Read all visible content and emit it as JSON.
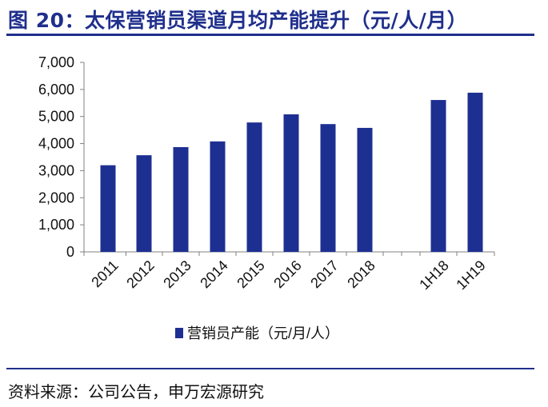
{
  "title": "图 20：太保营销员渠道月均产能提升（元/人/月）",
  "source": "资料来源：公司公告，申万宏源研究",
  "colors": {
    "bar": "#1e2f92",
    "title": "#1f2f8c",
    "axis": "#808080"
  },
  "chart_data": {
    "type": "bar",
    "title": "",
    "xlabel": "",
    "ylabel": "",
    "categories": [
      "2011",
      "2012",
      "2013",
      "2014",
      "2015",
      "2016",
      "2017",
      "2018",
      "1H18",
      "1H19"
    ],
    "series": [
      {
        "name": "营销员产能（元/月/人）",
        "values": [
          3200,
          3570,
          3870,
          4080,
          4780,
          5080,
          4720,
          4580,
          5610,
          5880
        ]
      }
    ],
    "y_ticks": [
      "0",
      "1,000",
      "2,000",
      "3,000",
      "4,000",
      "5,000",
      "6,000",
      "7,000"
    ],
    "ylim": [
      0,
      7000
    ],
    "grid": false,
    "legend_position": "bottom"
  }
}
